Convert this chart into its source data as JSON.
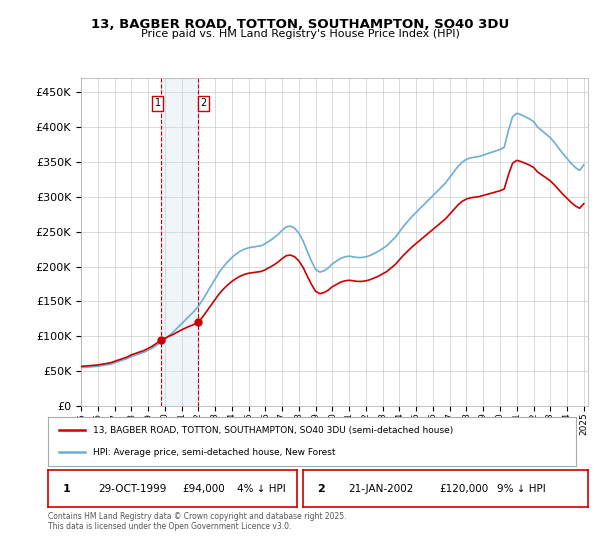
{
  "title": "13, BAGBER ROAD, TOTTON, SOUTHAMPTON, SO40 3DU",
  "subtitle": "Price paid vs. HM Land Registry's House Price Index (HPI)",
  "background_color": "#ffffff",
  "plot_background": "#ffffff",
  "grid_color": "#cccccc",
  "sale1_date": "29-OCT-1999",
  "sale1_price": 94000,
  "sale1_hpi_diff": "4% ↓ HPI",
  "sale2_date": "21-JAN-2002",
  "sale2_price": 120000,
  "sale2_hpi_diff": "9% ↓ HPI",
  "legend_entry1": "13, BAGBER ROAD, TOTTON, SOUTHAMPTON, SO40 3DU (semi-detached house)",
  "legend_entry2": "HPI: Average price, semi-detached house, New Forest",
  "footer": "Contains HM Land Registry data © Crown copyright and database right 2025.\nThis data is licensed under the Open Government Licence v3.0.",
  "hpi_color": "#6baed6",
  "price_color": "#cc0000",
  "sale_marker_color": "#cc0000",
  "vline_color": "#cc0000",
  "shade_color": "#c6dbef",
  "ylim": [
    0,
    470000
  ],
  "yticks": [
    0,
    50000,
    100000,
    150000,
    200000,
    250000,
    300000,
    350000,
    400000,
    450000
  ],
  "years_hpi": [
    1995.0,
    1995.25,
    1995.5,
    1995.75,
    1996.0,
    1996.25,
    1996.5,
    1996.75,
    1997.0,
    1997.25,
    1997.5,
    1997.75,
    1998.0,
    1998.25,
    1998.5,
    1998.75,
    1999.0,
    1999.25,
    1999.5,
    1999.75,
    2000.0,
    2000.25,
    2000.5,
    2000.75,
    2001.0,
    2001.25,
    2001.5,
    2001.75,
    2002.0,
    2002.25,
    2002.5,
    2002.75,
    2003.0,
    2003.25,
    2003.5,
    2003.75,
    2004.0,
    2004.25,
    2004.5,
    2004.75,
    2005.0,
    2005.25,
    2005.5,
    2005.75,
    2006.0,
    2006.25,
    2006.5,
    2006.75,
    2007.0,
    2007.25,
    2007.5,
    2007.75,
    2008.0,
    2008.25,
    2008.5,
    2008.75,
    2009.0,
    2009.25,
    2009.5,
    2009.75,
    2010.0,
    2010.25,
    2010.5,
    2010.75,
    2011.0,
    2011.25,
    2011.5,
    2011.75,
    2012.0,
    2012.25,
    2012.5,
    2012.75,
    2013.0,
    2013.25,
    2013.5,
    2013.75,
    2014.0,
    2014.25,
    2014.5,
    2014.75,
    2015.0,
    2015.25,
    2015.5,
    2015.75,
    2016.0,
    2016.25,
    2016.5,
    2016.75,
    2017.0,
    2017.25,
    2017.5,
    2017.75,
    2018.0,
    2018.25,
    2018.5,
    2018.75,
    2019.0,
    2019.25,
    2019.5,
    2019.75,
    2020.0,
    2020.25,
    2020.5,
    2020.75,
    2021.0,
    2021.25,
    2021.5,
    2021.75,
    2022.0,
    2022.25,
    2022.5,
    2022.75,
    2023.0,
    2023.25,
    2023.5,
    2023.75,
    2024.0,
    2024.25,
    2024.5,
    2024.75,
    2025.0
  ],
  "hpi_values": [
    55000,
    55500,
    56000,
    56500,
    57000,
    58000,
    59000,
    60000,
    62000,
    64000,
    66000,
    68000,
    71000,
    73000,
    75000,
    77000,
    80000,
    83000,
    87000,
    91000,
    96000,
    101000,
    106000,
    112000,
    118000,
    124000,
    130000,
    136000,
    143000,
    152000,
    162000,
    172000,
    182000,
    192000,
    200000,
    207000,
    213000,
    218000,
    222000,
    225000,
    227000,
    228000,
    229000,
    230000,
    233000,
    237000,
    241000,
    246000,
    252000,
    257000,
    258000,
    255000,
    248000,
    237000,
    222000,
    208000,
    196000,
    192000,
    194000,
    198000,
    204000,
    208000,
    212000,
    214000,
    215000,
    214000,
    213000,
    213000,
    214000,
    216000,
    219000,
    222000,
    226000,
    230000,
    236000,
    242000,
    250000,
    258000,
    265000,
    272000,
    278000,
    284000,
    290000,
    296000,
    302000,
    308000,
    314000,
    320000,
    328000,
    336000,
    344000,
    350000,
    354000,
    356000,
    357000,
    358000,
    360000,
    362000,
    364000,
    366000,
    368000,
    371000,
    395000,
    415000,
    420000,
    418000,
    415000,
    412000,
    408000,
    400000,
    395000,
    390000,
    385000,
    378000,
    370000,
    362000,
    355000,
    348000,
    342000,
    338000,
    346000
  ]
}
